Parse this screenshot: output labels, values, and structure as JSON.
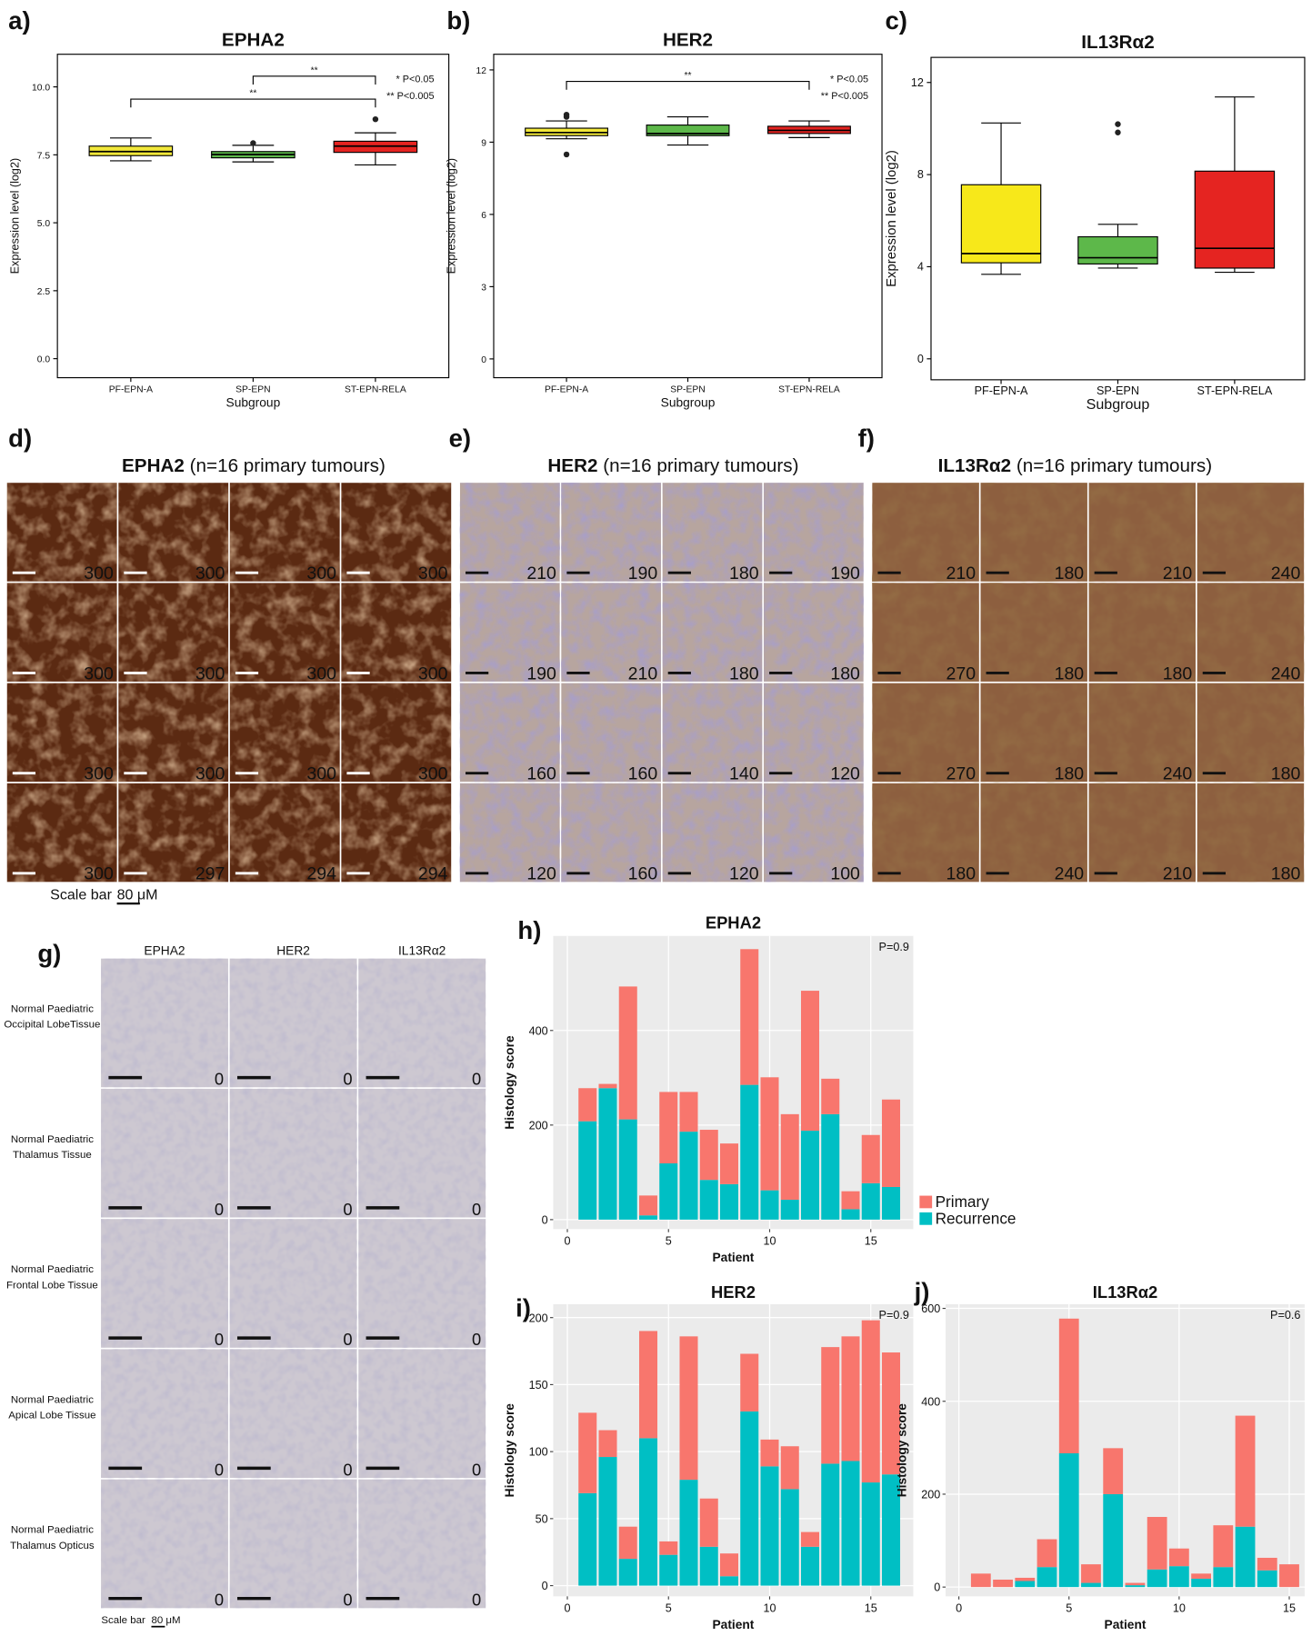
{
  "chart_data": [
    {
      "type": "box",
      "label": "a)",
      "title": "EPHA2",
      "x_label": "Subgroup",
      "y_label": "Expression level (log2)",
      "categories": [
        "PF-EPN-A",
        "SP-EPN",
        "ST-EPN-RELA"
      ],
      "ylim": [
        -0.7,
        11.2
      ],
      "yticks": [
        {
          "value": 0,
          "label": "0.0"
        },
        2.5,
        {
          "value": 5,
          "label": "5.0"
        },
        7.5,
        {
          "value": 10,
          "label": "10.0"
        }
      ],
      "boxes": [
        {
          "color": "#f2e83a",
          "whisker_low": 7.28,
          "q1": 7.47,
          "median": 7.62,
          "q3": 7.82,
          "whisker_high": 8.12,
          "outliers": []
        },
        {
          "color": "#5db84a",
          "whisker_low": 7.24,
          "q1": 7.39,
          "median": 7.51,
          "q3": 7.62,
          "whisker_high": 7.85,
          "outliers": [
            7.93
          ]
        },
        {
          "color": "#e52421",
          "whisker_low": 7.13,
          "q1": 7.59,
          "median": 7.82,
          "q3": 8.0,
          "whisker_high": 8.31,
          "outliers": [
            8.81
          ]
        }
      ],
      "comparisons": [
        "**",
        "**"
      ],
      "significance_key": [
        "* P<0.05",
        "** P<0.005"
      ]
    },
    {
      "type": "box",
      "label": "b)",
      "title": "HER2",
      "x_label": "Subgroup",
      "y_label": "Expression level (log2)",
      "categories": [
        "PF-EPN-A",
        "SP-EPN",
        "ST-EPN-RELA"
      ],
      "ylim": [
        -0.78,
        12.65
      ],
      "yticks": [
        0,
        3,
        6,
        9,
        12
      ],
      "boxes": [
        {
          "color": "#f2e83a",
          "whisker_low": 9.14,
          "q1": 9.27,
          "median": 9.4,
          "q3": 9.58,
          "whisker_high": 9.88,
          "outliers": [
            10.14,
            10.05,
            8.49
          ]
        },
        {
          "color": "#5db84a",
          "whisker_low": 8.88,
          "q1": 9.27,
          "median": 9.36,
          "q3": 9.71,
          "whisker_high": 10.05,
          "outliers": []
        },
        {
          "color": "#e52421",
          "whisker_low": 9.19,
          "q1": 9.36,
          "median": 9.49,
          "q3": 9.66,
          "whisker_high": 9.88,
          "outliers": []
        }
      ],
      "comparisons": [
        "**"
      ],
      "significance_key": [
        "* P<0.05",
        "** P<0.005"
      ]
    },
    {
      "type": "box",
      "label": "c)",
      "title": "IL13Rα2",
      "x_label": "Subgroup",
      "y_label": "Expression level (log2)",
      "categories": [
        "PF-EPN-A",
        "SP-EPN",
        "ST-EPN-RELA"
      ],
      "ylim": [
        -0.91,
        13.09
      ],
      "yticks": [
        0,
        4,
        8,
        12
      ],
      "boxes": [
        {
          "color": "#f7e81a",
          "whisker_low": 3.67,
          "q1": 4.17,
          "median": 4.57,
          "q3": 7.56,
          "whisker_high": 10.24,
          "outliers": []
        },
        {
          "color": "#5db84a",
          "whisker_low": 3.94,
          "q1": 4.12,
          "median": 4.39,
          "q3": 5.3,
          "whisker_high": 5.84,
          "outliers": [
            10.19,
            9.83
          ]
        },
        {
          "color": "#e52421",
          "whisker_low": 3.76,
          "q1": 3.94,
          "median": 4.8,
          "q3": 8.15,
          "whisker_high": 11.37,
          "outliers": []
        }
      ]
    },
    {
      "type": "bar",
      "label": "h)",
      "title": "EPHA2",
      "annotation": "P=0.9",
      "x_label": "Patient",
      "y_label": "Histology score",
      "x": [
        1,
        2,
        3,
        4,
        5,
        6,
        7,
        8,
        9,
        10,
        11,
        12,
        13,
        14,
        15,
        16
      ],
      "xlim": [
        -0.7,
        17.1
      ],
      "xticks": [
        0,
        5,
        10,
        15
      ],
      "ylim": [
        -20,
        600
      ],
      "yticks": [
        0,
        200,
        400
      ],
      "grid": true,
      "legend": "outside-right",
      "series": [
        {
          "name": "Primary",
          "color": "#f8766d",
          "values": [
            70,
            9,
            281,
            42,
            151,
            84,
            106,
            86,
            287,
            239,
            181,
            296,
            75,
            38,
            102,
            185
          ]
        },
        {
          "name": "Recurrence",
          "color": "#00bfc4",
          "values": [
            208,
            278,
            212,
            9,
            119,
            186,
            84,
            75,
            285,
            62,
            42,
            188,
            223,
            22,
            77,
            69
          ]
        }
      ]
    },
    {
      "type": "bar",
      "label": "i)",
      "title": "HER2",
      "annotation": "P=0.9",
      "x_label": "Patient",
      "y_label": "Histology score",
      "x": [
        1,
        2,
        3,
        4,
        5,
        6,
        7,
        8,
        9,
        10,
        11,
        12,
        13,
        14,
        15,
        16
      ],
      "xlim": [
        -0.7,
        17.1
      ],
      "xticks": [
        0,
        5,
        10,
        15
      ],
      "ylim": [
        -8,
        210
      ],
      "yticks": [
        0,
        50,
        100,
        150,
        200
      ],
      "grid": true,
      "series": [
        {
          "color": "#f8766d",
          "values": [
            60,
            20,
            24,
            80,
            10,
            107,
            36,
            17,
            43,
            20,
            32,
            11,
            87,
            93,
            121,
            91
          ]
        },
        {
          "color": "#00bfc4",
          "values": [
            69,
            96,
            20,
            110,
            23,
            79,
            29,
            7,
            130,
            89,
            72,
            29,
            91,
            93,
            77,
            83
          ]
        }
      ]
    },
    {
      "type": "bar",
      "label": "j)",
      "title": "IL13Rα2",
      "annotation": "P=0.6",
      "x_label": "Patient",
      "y_label": "Histology score",
      "x": [
        1,
        2,
        3,
        4,
        5,
        6,
        7,
        8,
        9,
        10,
        11,
        12,
        13,
        14,
        15
      ],
      "xlim": [
        -0.6,
        15.7
      ],
      "xticks": [
        0,
        5,
        10,
        15
      ],
      "ylim": [
        -20,
        609
      ],
      "yticks": [
        0,
        200,
        400,
        600
      ],
      "grid": true,
      "series": [
        {
          "color": "#f8766d",
          "values": [
            29,
            16,
            7,
            60,
            290,
            40,
            99,
            5,
            113,
            38,
            11,
            90,
            239,
            27,
            49
          ]
        },
        {
          "color": "#00bfc4",
          "values": [
            0,
            0,
            13,
            43,
            288,
            9,
            200,
            4,
            38,
            45,
            18,
            43,
            130,
            36,
            0
          ]
        }
      ]
    }
  ],
  "image_panels": [
    {
      "label": "d)",
      "title": "EPHA2",
      "note": "(n=16 primary tumours)",
      "scores": [
        "300",
        "300",
        "300",
        "300",
        "300",
        "300",
        "300",
        "300",
        "300",
        "300",
        "300",
        "300",
        "300",
        "297",
        "294",
        "294"
      ]
    },
    {
      "label": "e)",
      "title": "HER2",
      "note": "(n=16 primary tumours)",
      "scores": [
        "210",
        "190",
        "180",
        "190",
        "190",
        "210",
        "180",
        "180",
        "160",
        "160",
        "140",
        "120",
        "120",
        "160",
        "120",
        "100"
      ]
    },
    {
      "label": "f)",
      "title": "IL13Rα2",
      "note": "(n=16 primary tumours)",
      "scores": [
        "210",
        "180",
        "210",
        "240",
        "270",
        "180",
        "180",
        "240",
        "270",
        "180",
        "240",
        "180",
        "180",
        "240",
        "210",
        "180"
      ]
    }
  ],
  "scale_bar": {
    "text": "Scale bar",
    "length": "80 μM"
  },
  "normal_tissue": {
    "label": "g)",
    "columns": [
      "EPHA2",
      "HER2",
      "IL13Rα2"
    ],
    "rows": [
      {
        "label": [
          "Normal Paediatric",
          "Occipital LobeTissue"
        ],
        "scores": [
          "0",
          "0",
          "0"
        ]
      },
      {
        "label": [
          "Normal Paediatric",
          "Thalamus Tissue"
        ],
        "scores": [
          "0",
          "0",
          "0"
        ]
      },
      {
        "label": [
          "Normal Paediatric",
          "Frontal Lobe Tissue"
        ],
        "scores": [
          "0",
          "0",
          "0"
        ]
      },
      {
        "label": [
          "Normal Paediatric",
          "Apical Lobe Tissue"
        ],
        "scores": [
          "0",
          "0",
          "0"
        ]
      },
      {
        "label": [
          "Normal Paediatric",
          "Thalamus Opticus"
        ],
        "scores": [
          "0",
          "0",
          "0"
        ]
      }
    ],
    "scale_bar": {
      "text": "Scale bar",
      "length": "80 μM"
    }
  }
}
